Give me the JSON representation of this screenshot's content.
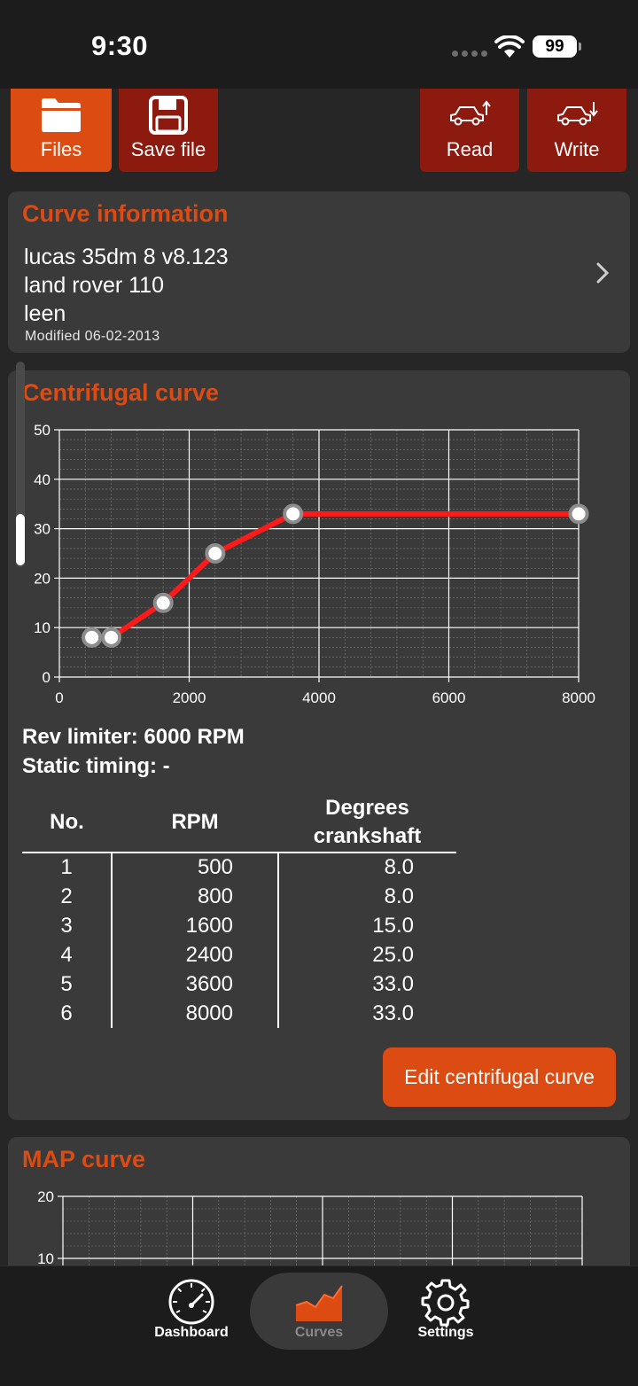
{
  "status_bar": {
    "time": "9:30",
    "battery": "99"
  },
  "toolbar": {
    "files_label": "Files",
    "save_label": "Save file",
    "read_label": "Read",
    "write_label": "Write"
  },
  "curve_info": {
    "title": "Curve information",
    "line1": "lucas 35dm 8 v8.123",
    "line2": "land rover 110",
    "line3": "leen",
    "modified": "Modified 06-02-2013"
  },
  "centrifugal": {
    "title": "Centrifugal curve",
    "rev_limiter": "Rev limiter: 6000 RPM",
    "static_timing": "Static timing: -",
    "table": {
      "headers": {
        "no": "No.",
        "rpm": "RPM",
        "degrees_1": "Degrees",
        "degrees_2": "crankshaft"
      },
      "rows": [
        {
          "no": "1",
          "rpm": "500",
          "deg": "8.0"
        },
        {
          "no": "2",
          "rpm": "800",
          "deg": "8.0"
        },
        {
          "no": "3",
          "rpm": "1600",
          "deg": "15.0"
        },
        {
          "no": "4",
          "rpm": "2400",
          "deg": "25.0"
        },
        {
          "no": "5",
          "rpm": "3600",
          "deg": "33.0"
        },
        {
          "no": "6",
          "rpm": "8000",
          "deg": "33.0"
        }
      ]
    },
    "edit_button": "Edit centrifugal curve"
  },
  "map": {
    "title": "MAP curve"
  },
  "chart_data": [
    {
      "type": "line",
      "title": "",
      "xlabel": "",
      "ylabel": "",
      "x": [
        500,
        800,
        1600,
        2400,
        3600,
        8000
      ],
      "series": [
        {
          "values": [
            8,
            8,
            15,
            25,
            33,
            33
          ]
        }
      ],
      "xlim": [
        0,
        8000
      ],
      "ylim": [
        0,
        50
      ],
      "xticks": [
        "0",
        "2000",
        "4000",
        "6000",
        "8000"
      ],
      "yticks": [
        "0",
        "10",
        "20",
        "30",
        "40",
        "50"
      ],
      "grid": true,
      "line_color": "#ff1a1a"
    },
    {
      "type": "line",
      "title": "",
      "ylim_visible": [
        10,
        20
      ],
      "yticks": [
        "10",
        "20"
      ],
      "grid": true
    }
  ],
  "tabs": [
    {
      "label": "Dashboard",
      "icon": "speedometer-icon"
    },
    {
      "label": "Curves",
      "icon": "curve-chart-icon",
      "active": true
    },
    {
      "label": "Settings",
      "icon": "gear-icon"
    }
  ],
  "colors": {
    "accent": "#dc4b12",
    "dark_red": "#8c1a0f",
    "card": "#3a3a3a"
  }
}
